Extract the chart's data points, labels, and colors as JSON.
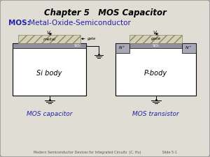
{
  "title": "Chapter 5   MOS Capacitor",
  "footer": "Modern Semiconductor Devices for Integrated Circuits  (C. Hu)                    Slide 5-1",
  "cap_label": "MOS capacitor",
  "trans_label": "MOS transistor",
  "bg_color": "#e0ddd4",
  "border_color": "#999999",
  "white": "#ffffff",
  "blue_label": "#2222aa",
  "metal_face_color": "#d4d0b8",
  "sio2_color": "#9090a0",
  "nbody_color": "#a8a8b8",
  "gate_text_color": "#333333",
  "body_text_color": "#000000"
}
